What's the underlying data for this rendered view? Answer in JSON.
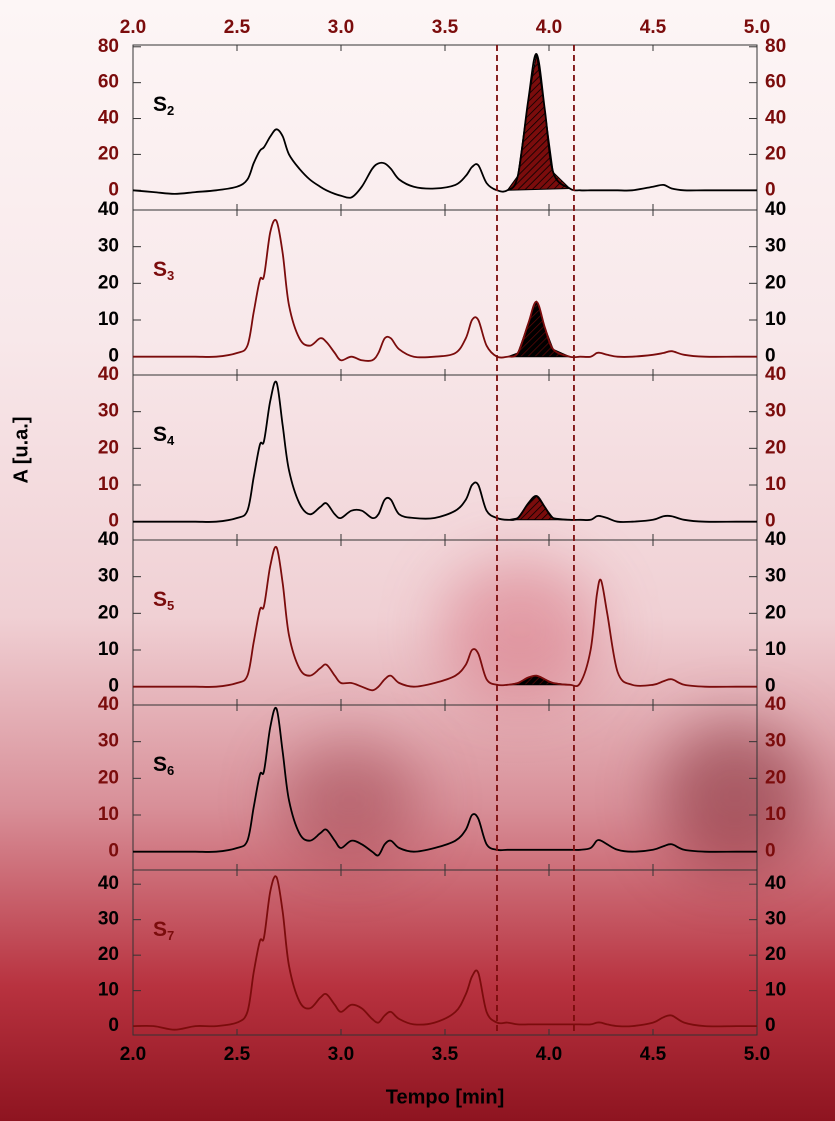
{
  "chart_data": {
    "type": "line",
    "x_label": "Tempo [min]",
    "y_label": "A [u.a.]",
    "xlim": [
      2.0,
      5.0
    ],
    "xticks": [
      {
        "value": 2.0,
        "label": "2.0"
      },
      {
        "value": 2.5,
        "label": "2.5"
      },
      {
        "value": 3.0,
        "label": "3.0"
      },
      {
        "value": 3.5,
        "label": "3.5"
      },
      {
        "value": 4.0,
        "label": "4.0"
      },
      {
        "value": 4.5,
        "label": "4.5"
      },
      {
        "value": 5.0,
        "label": "5.0"
      }
    ],
    "top_axis_color": "#7b0c0c",
    "markers": [
      3.75,
      4.12
    ],
    "marker_color": "#7b0c0c",
    "x": [
      2.0,
      2.1,
      2.2,
      2.3,
      2.4,
      2.5,
      2.55,
      2.58,
      2.61,
      2.63,
      2.66,
      2.69,
      2.72,
      2.75,
      2.8,
      2.85,
      2.9,
      2.93,
      2.97,
      3.0,
      3.05,
      3.1,
      3.15,
      3.18,
      3.21,
      3.24,
      3.28,
      3.35,
      3.45,
      3.55,
      3.6,
      3.63,
      3.66,
      3.7,
      3.75,
      3.8,
      3.85,
      3.9,
      3.94,
      3.98,
      4.02,
      4.1,
      4.15,
      4.2,
      4.23,
      4.25,
      4.28,
      4.33,
      4.4,
      4.5,
      4.55,
      4.59,
      4.65,
      4.75,
      4.9,
      5.0
    ],
    "series": [
      {
        "name": "S",
        "subscript": "2",
        "color": "#000000",
        "axis_color": "#7b0c0c",
        "ylim": [
          -11,
          81
        ],
        "yticks": [
          0,
          20,
          40,
          60,
          80
        ],
        "shade": [
          3.8,
          4.1
        ],
        "shade_color": "#7b0c0c",
        "values": [
          0,
          -1,
          -2,
          -1,
          0,
          2,
          6,
          15,
          22,
          24,
          30,
          34,
          30,
          20,
          12,
          6,
          2,
          0,
          -2,
          -3,
          -4,
          2,
          12,
          15,
          15,
          12,
          6,
          2,
          1,
          3,
          8,
          13,
          14,
          4,
          0,
          0,
          8,
          50,
          76,
          45,
          10,
          1,
          0,
          0,
          0,
          0,
          0,
          0,
          0,
          2,
          3,
          1,
          0,
          0,
          0,
          0
        ]
      },
      {
        "name": "S",
        "subscript": "3",
        "color": "#7b0c0c",
        "axis_color": "#000000",
        "ylim": [
          -5,
          40
        ],
        "yticks": [
          0,
          10,
          20,
          30,
          40
        ],
        "shade": [
          3.8,
          4.1
        ],
        "shade_color": "#000000",
        "values": [
          0,
          0,
          0,
          0,
          0,
          1,
          3,
          12,
          21,
          22,
          34,
          37,
          28,
          14,
          5,
          3,
          5,
          4,
          1,
          -1,
          0,
          -1,
          -1,
          1,
          5,
          5,
          2,
          0,
          0,
          1,
          5,
          10,
          10,
          3,
          0,
          0,
          1,
          9,
          15,
          8,
          2,
          0,
          0,
          0,
          1,
          1,
          0.5,
          0,
          0,
          0.5,
          1,
          1.5,
          0.5,
          0,
          0,
          0
        ]
      },
      {
        "name": "S",
        "subscript": "4",
        "color": "#000000",
        "axis_color": "#7b0c0c",
        "ylim": [
          -5,
          40
        ],
        "yticks": [
          0,
          10,
          20,
          30,
          40
        ],
        "shade": [
          3.8,
          4.1
        ],
        "shade_color": "#7b0c0c",
        "values": [
          0,
          0,
          0,
          0,
          0,
          1,
          3,
          12,
          21,
          22,
          33,
          38,
          26,
          14,
          5,
          2,
          4,
          5,
          2,
          1,
          3,
          3,
          1,
          2,
          6,
          6,
          2,
          1,
          1,
          3,
          6,
          10,
          10,
          3,
          1,
          0.5,
          1,
          5,
          7,
          4,
          1,
          0.5,
          0.5,
          0.5,
          1.5,
          1.5,
          1,
          0,
          0,
          0.5,
          1.5,
          1.5,
          0.5,
          0,
          0,
          0
        ]
      },
      {
        "name": "S",
        "subscript": "5",
        "color": "#7b0c0c",
        "axis_color": "#000000",
        "ylim": [
          -5,
          40
        ],
        "yticks": [
          0,
          10,
          20,
          30,
          40
        ],
        "shade": [
          3.8,
          4.1
        ],
        "shade_color": "#000000",
        "values": [
          0,
          0,
          0,
          0,
          0,
          1,
          3,
          12,
          21,
          22,
          33,
          38,
          28,
          14,
          5,
          3,
          5,
          6,
          3,
          1,
          1,
          0,
          -1,
          0,
          2,
          3,
          1,
          0,
          1,
          3,
          6,
          10,
          9,
          2,
          0.5,
          0.5,
          1,
          2.5,
          3,
          2,
          1,
          0.5,
          1,
          10,
          25,
          29,
          20,
          4,
          0.5,
          0.5,
          1.5,
          2,
          0.5,
          0,
          0,
          0
        ]
      },
      {
        "name": "S",
        "subscript": "6",
        "color": "#000000",
        "axis_color": "#7b0c0c",
        "ylim": [
          -5,
          40
        ],
        "yticks": [
          0,
          10,
          20,
          30,
          40
        ],
        "values": [
          0,
          0,
          0,
          0,
          0,
          1,
          3,
          12,
          21,
          22,
          34,
          39,
          27,
          14,
          5,
          3,
          5,
          6,
          3,
          1,
          3,
          2,
          0,
          -1,
          2,
          3,
          1,
          0,
          1,
          3,
          6,
          10,
          9,
          2,
          0.5,
          0.5,
          0.5,
          0.5,
          0.5,
          0.5,
          0.5,
          0.5,
          0.5,
          1,
          3,
          3,
          2,
          0.5,
          0,
          0.5,
          1.5,
          2,
          0.5,
          0,
          0,
          0
        ]
      },
      {
        "name": "S",
        "subscript": "7",
        "color": "#7b0c0c",
        "axis_color": "#000000",
        "ylim": [
          -2.5,
          44
        ],
        "yticks": [
          0,
          10,
          20,
          30,
          40
        ],
        "values": [
          0,
          0,
          -1,
          0,
          0,
          1,
          4,
          15,
          24,
          25,
          38,
          42,
          32,
          17,
          7,
          5,
          8,
          9,
          6,
          4,
          6,
          5,
          2,
          1,
          3,
          4,
          2,
          0.5,
          1,
          4,
          9,
          14,
          15,
          4,
          1,
          1,
          0.5,
          0.5,
          0.5,
          0.5,
          0.5,
          0.5,
          0.5,
          0.5,
          1,
          1,
          0.5,
          0,
          0,
          1,
          2.5,
          3,
          1,
          0,
          0,
          0
        ]
      }
    ]
  }
}
